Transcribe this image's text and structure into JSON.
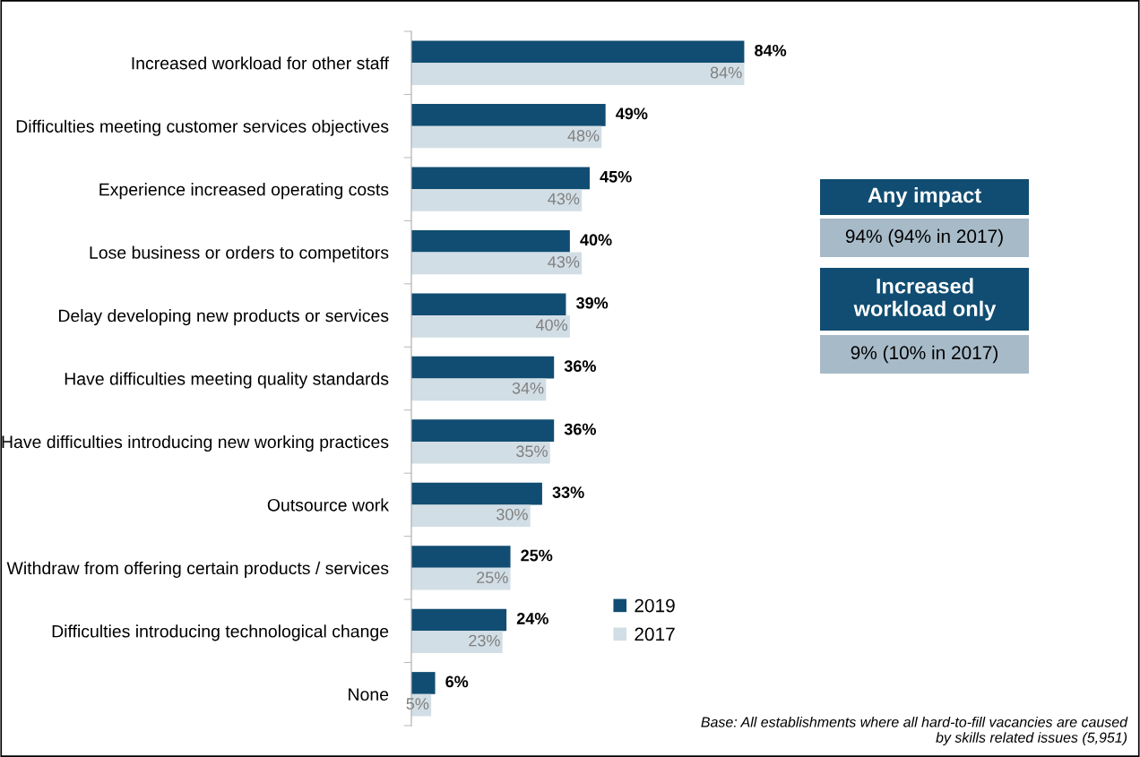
{
  "chart_data": {
    "type": "bar",
    "orientation": "horizontal",
    "categories": [
      "Increased workload for other staff",
      "Difficulties meeting customer services objectives",
      "Experience increased operating costs",
      "Lose business or orders to competitors",
      "Delay developing new products or services",
      "Have difficulties meeting quality standards",
      "Have difficulties introducing new working practices",
      "Outsource work",
      "Withdraw from offering certain products / services",
      "Difficulties introducing technological change",
      "None"
    ],
    "series": [
      {
        "name": "2019",
        "color": "#114d72",
        "values": [
          84,
          49,
          45,
          40,
          39,
          36,
          36,
          33,
          25,
          24,
          6
        ],
        "value_labels": [
          "84%",
          "49%",
          "45%",
          "40%",
          "39%",
          "36%",
          "36%",
          "33%",
          "25%",
          "24%",
          "6%"
        ]
      },
      {
        "name": "2017",
        "color": "#d2dee5",
        "values": [
          84,
          48,
          43,
          43,
          40,
          34,
          35,
          30,
          25,
          23,
          5
        ],
        "value_labels": [
          "84%",
          "48%",
          "43%",
          "43%",
          "40%",
          "34%",
          "35%",
          "30%",
          "25%",
          "23%",
          "5%"
        ]
      }
    ],
    "legend": "right",
    "grid": false,
    "tick_labels": "y",
    "annotations": [
      "Any impact",
      "94% (94% in 2017)",
      "Increased workload only",
      "9% (10% in 2017)",
      "Base: All establishments where all hard-to-fill vacancies are caused by skills related issues (5,951)"
    ]
  }
}
